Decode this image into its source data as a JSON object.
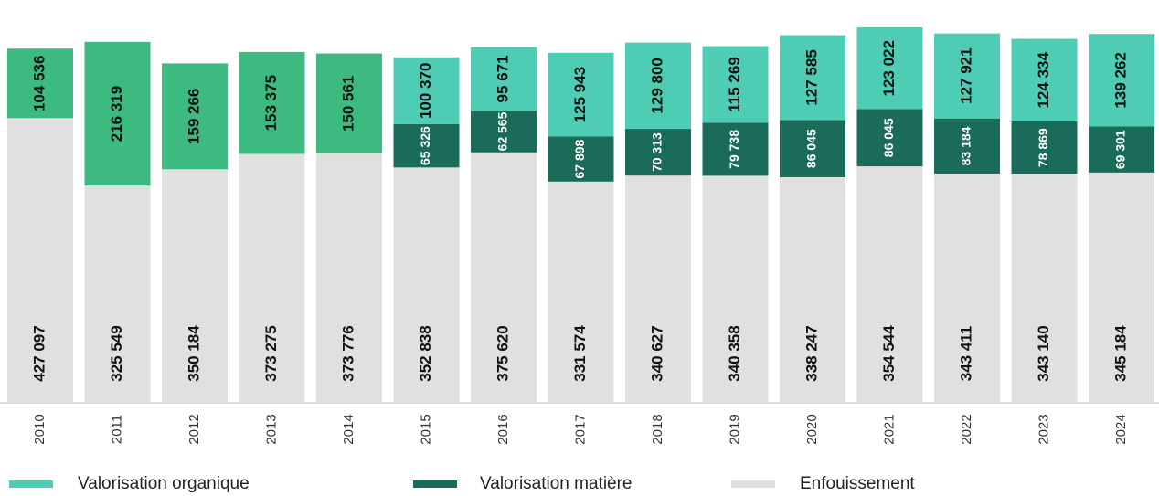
{
  "chart_data": {
    "type": "stacked_bar",
    "categories": [
      "2010",
      "2011",
      "2012",
      "2013",
      "2014",
      "2015",
      "2016",
      "2017",
      "2018",
      "2019",
      "2020",
      "2021",
      "2022",
      "2023",
      "2024"
    ],
    "series": [
      {
        "name": "Enfouissement",
        "color": "#e0e0e0",
        "values": [
          427097,
          325549,
          350184,
          373275,
          373776,
          352838,
          375620,
          331574,
          340627,
          340358,
          338247,
          354544,
          343411,
          343140,
          345184
        ],
        "value_labels": [
          "427 097",
          "325 549",
          "350 184",
          "373 275",
          "373 776",
          "352 838",
          "375 620",
          "331 574",
          "340 627",
          "340 358",
          "338 247",
          "354 544",
          "343 411",
          "343 140",
          "345 184"
        ]
      },
      {
        "name": "Valorisation matière",
        "color": "#1b6b5a",
        "values": [
          null,
          null,
          null,
          null,
          null,
          65326,
          62565,
          67898,
          70313,
          79738,
          86045,
          86045,
          83184,
          78869,
          69301
        ],
        "value_labels": [
          null,
          null,
          null,
          null,
          null,
          "65 326",
          "62 565",
          "67 898",
          "70 313",
          "79 738",
          "86 045",
          "86 045",
          "83 184",
          "78 869",
          "69 301"
        ]
      },
      {
        "name": "Valorisation organique",
        "color": "#4ecdb4",
        "colors": [
          "#3dba7f",
          "#3dba7f",
          "#3dba7f",
          "#3dba7f",
          "#3dba7f",
          "#4ecdb4",
          "#4ecdb4",
          "#4ecdb4",
          "#4ecdb4",
          "#4ecdb4",
          "#4ecdb4",
          "#4ecdb4",
          "#4ecdb4",
          "#4ecdb4",
          "#4ecdb4"
        ],
        "values": [
          104536,
          216319,
          159266,
          153375,
          150561,
          100370,
          95671,
          125943,
          129800,
          115269,
          127585,
          123022,
          127921,
          124334,
          139262
        ],
        "value_labels": [
          "104 536",
          "216 319",
          "159 266",
          "153 375",
          "150 561",
          "100 370",
          "95 671",
          "125 943",
          "129 800",
          "115 269",
          "127 585",
          "123 022",
          "127 921",
          "124 334",
          "139 262"
        ]
      }
    ]
  }
}
